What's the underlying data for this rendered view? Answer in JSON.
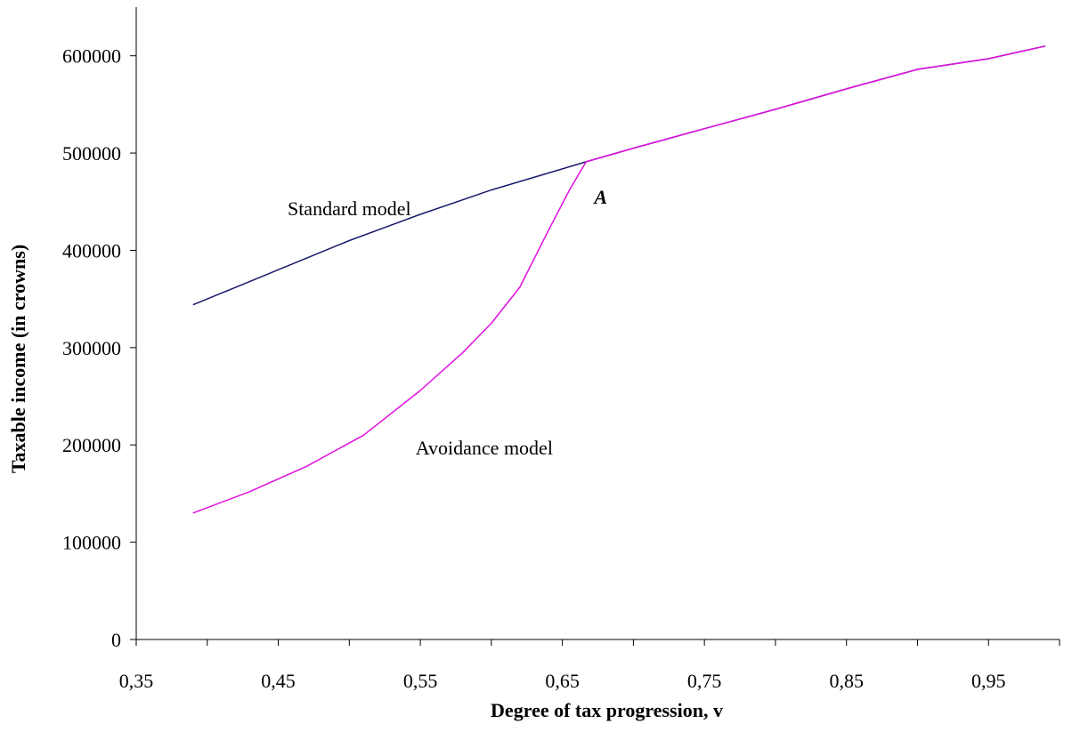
{
  "chart_data": {
    "type": "line",
    "title": "",
    "xlabel": "Degree of tax progression, v",
    "ylabel": "Taxable income (in crowns)",
    "xlim": [
      0.35,
      1.0
    ],
    "ylim": [
      0,
      650000
    ],
    "x_ticks": [
      0.35,
      0.45,
      0.55,
      0.65,
      0.75,
      0.85,
      0.95
    ],
    "x_tick_labels": [
      "0,35",
      "0,45",
      "0,55",
      "0,65",
      "0,75",
      "0,85",
      "0,95"
    ],
    "y_ticks": [
      0,
      100000,
      200000,
      300000,
      400000,
      500000,
      600000
    ],
    "y_tick_labels": [
      "0",
      "100000",
      "200000",
      "300000",
      "400000",
      "500000",
      "600000"
    ],
    "grid": false,
    "legend": "none",
    "series": [
      {
        "name": "Standard model",
        "color": "#1a1a6e",
        "x": [
          0.39,
          0.45,
          0.5,
          0.55,
          0.6,
          0.6667,
          0.7,
          0.75,
          0.8,
          0.85,
          0.9,
          0.95,
          0.99
        ],
        "y": [
          344000,
          380000,
          410000,
          437000,
          462000,
          491000,
          505000,
          525000,
          545000,
          566000,
          586000,
          597000,
          610000
        ]
      },
      {
        "name": "Avoidance model",
        "color": "#e010e0",
        "x": [
          0.39,
          0.43,
          0.47,
          0.51,
          0.55,
          0.58,
          0.6,
          0.62,
          0.64,
          0.655,
          0.6667,
          0.7,
          0.75,
          0.8,
          0.85,
          0.9,
          0.95,
          0.99
        ],
        "y": [
          130000,
          152000,
          178000,
          210000,
          256000,
          295000,
          325000,
          362000,
          420000,
          462000,
          491000,
          505000,
          525000,
          545000,
          566000,
          586000,
          597000,
          610000
        ]
      }
    ],
    "annotations": [
      {
        "text": "Standard model",
        "x": 0.5,
        "y": 436000,
        "style": "normal"
      },
      {
        "text": "Avoidance model",
        "x": 0.595,
        "y": 190000,
        "style": "normal"
      },
      {
        "text": "A",
        "x": 0.677,
        "y": 448000,
        "style": "bold-italic"
      }
    ]
  }
}
